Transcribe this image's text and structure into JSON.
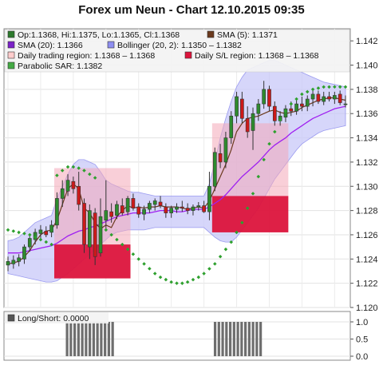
{
  "title": "Forex um Neun - Chart 12.10.2015 09:35",
  "legend": [
    {
      "id": "ohlc",
      "label": "Op:1.1368, Hi:1.1375, Lo:1.1365, Cl:1.1368",
      "color": "#2d7a2d"
    },
    {
      "id": "sma5",
      "label": "SMA (5): 1.1371",
      "color": "#6b3a1e"
    },
    {
      "id": "sma20",
      "label": "SMA (20): 1.1366",
      "color": "#7b22c8"
    },
    {
      "id": "boll",
      "label": "Bollinger (20, 2): 1.1350 – 1.1382",
      "color": "#8e8ef0"
    },
    {
      "id": "range",
      "label": "Daily trading region: 1.1368 – 1.1368",
      "color": "#ffcccc"
    },
    {
      "id": "sl",
      "label": "Daily S/L region: 1.1368 – 1.1368",
      "color": "#dc143c"
    },
    {
      "id": "sar",
      "label": "Parabolic SAR: 1.1382",
      "color": "#44aa44"
    }
  ],
  "lower_legend": {
    "label": "Long/Short: 0.0000",
    "color": "#555555"
  },
  "colors": {
    "up": "#2e8b2e",
    "down": "#cc1a1a",
    "band": "#c8c8f8",
    "sma20": "#a020f0",
    "sma5": "#6b3a1e",
    "sar": "#2ea02e",
    "bars": "#6e6e6e"
  },
  "chart_data": [
    {
      "type": "candlestick",
      "title": "Forex um Neun - Chart 12.10.2015 09:35",
      "ylim": [
        1.12,
        1.143
      ],
      "yticks": [
        "1.120",
        "1.122",
        "1.124",
        "1.126",
        "1.128",
        "1.130",
        "1.132",
        "1.134",
        "1.136",
        "1.138",
        "1.140",
        "1.142"
      ],
      "grid": true,
      "legend_position": "top-left",
      "candles": [
        {
          "o": 1.1235,
          "h": 1.1242,
          "l": 1.123,
          "c": 1.1238
        },
        {
          "o": 1.1236,
          "h": 1.1243,
          "l": 1.1232,
          "c": 1.1239
        },
        {
          "o": 1.1238,
          "h": 1.1244,
          "l": 1.1234,
          "c": 1.1241
        },
        {
          "o": 1.124,
          "h": 1.1252,
          "l": 1.1236,
          "c": 1.125
        },
        {
          "o": 1.125,
          "h": 1.126,
          "l": 1.1246,
          "c": 1.1257
        },
        {
          "o": 1.1256,
          "h": 1.1265,
          "l": 1.1252,
          "c": 1.1262
        },
        {
          "o": 1.1261,
          "h": 1.1268,
          "l": 1.1257,
          "c": 1.1264
        },
        {
          "o": 1.1263,
          "h": 1.1267,
          "l": 1.1258,
          "c": 1.126
        },
        {
          "o": 1.1262,
          "h": 1.1272,
          "l": 1.1258,
          "c": 1.1268
        },
        {
          "o": 1.1268,
          "h": 1.1295,
          "l": 1.1265,
          "c": 1.129
        },
        {
          "o": 1.129,
          "h": 1.1305,
          "l": 1.1283,
          "c": 1.1298
        },
        {
          "o": 1.1296,
          "h": 1.131,
          "l": 1.1292,
          "c": 1.1305
        },
        {
          "o": 1.1304,
          "h": 1.1308,
          "l": 1.1294,
          "c": 1.1298
        },
        {
          "o": 1.13,
          "h": 1.1312,
          "l": 1.128,
          "c": 1.1285
        },
        {
          "o": 1.1286,
          "h": 1.129,
          "l": 1.1245,
          "c": 1.1252
        },
        {
          "o": 1.125,
          "h": 1.1285,
          "l": 1.124,
          "c": 1.128
        },
        {
          "o": 1.1278,
          "h": 1.1282,
          "l": 1.1235,
          "c": 1.1242
        },
        {
          "o": 1.1245,
          "h": 1.129,
          "l": 1.1242,
          "c": 1.1275
        },
        {
          "o": 1.1272,
          "h": 1.1305,
          "l": 1.1265,
          "c": 1.128
        },
        {
          "o": 1.1279,
          "h": 1.1286,
          "l": 1.127,
          "c": 1.1275
        },
        {
          "o": 1.1276,
          "h": 1.1288,
          "l": 1.1273,
          "c": 1.1285
        },
        {
          "o": 1.1284,
          "h": 1.129,
          "l": 1.1276,
          "c": 1.1278
        },
        {
          "o": 1.1279,
          "h": 1.1292,
          "l": 1.1276,
          "c": 1.129
        },
        {
          "o": 1.129,
          "h": 1.1294,
          "l": 1.128,
          "c": 1.1282
        },
        {
          "o": 1.1283,
          "h": 1.1286,
          "l": 1.1274,
          "c": 1.1277
        },
        {
          "o": 1.1277,
          "h": 1.1284,
          "l": 1.1272,
          "c": 1.1281
        },
        {
          "o": 1.1281,
          "h": 1.1288,
          "l": 1.1278,
          "c": 1.1286
        },
        {
          "o": 1.1285,
          "h": 1.129,
          "l": 1.128,
          "c": 1.1288
        },
        {
          "o": 1.1287,
          "h": 1.1292,
          "l": 1.1282,
          "c": 1.1284
        },
        {
          "o": 1.1283,
          "h": 1.1286,
          "l": 1.1274,
          "c": 1.1278
        },
        {
          "o": 1.1278,
          "h": 1.1284,
          "l": 1.1274,
          "c": 1.1282
        },
        {
          "o": 1.1281,
          "h": 1.1286,
          "l": 1.1278,
          "c": 1.1283
        },
        {
          "o": 1.1283,
          "h": 1.1288,
          "l": 1.1279,
          "c": 1.1282
        },
        {
          "o": 1.1282,
          "h": 1.1286,
          "l": 1.1277,
          "c": 1.128
        },
        {
          "o": 1.128,
          "h": 1.1285,
          "l": 1.1276,
          "c": 1.1283
        },
        {
          "o": 1.1283,
          "h": 1.1287,
          "l": 1.128,
          "c": 1.1284
        },
        {
          "o": 1.1284,
          "h": 1.1288,
          "l": 1.1278,
          "c": 1.1279
        },
        {
          "o": 1.1279,
          "h": 1.1312,
          "l": 1.1272,
          "c": 1.13
        },
        {
          "o": 1.13,
          "h": 1.1332,
          "l": 1.1296,
          "c": 1.1328
        },
        {
          "o": 1.1327,
          "h": 1.1335,
          "l": 1.1315,
          "c": 1.132
        },
        {
          "o": 1.132,
          "h": 1.1345,
          "l": 1.1315,
          "c": 1.134
        },
        {
          "o": 1.134,
          "h": 1.1362,
          "l": 1.1335,
          "c": 1.1358
        },
        {
          "o": 1.1358,
          "h": 1.1378,
          "l": 1.1352,
          "c": 1.1374
        },
        {
          "o": 1.1372,
          "h": 1.1378,
          "l": 1.1352,
          "c": 1.1356
        },
        {
          "o": 1.1356,
          "h": 1.1366,
          "l": 1.134,
          "c": 1.1345
        },
        {
          "o": 1.1346,
          "h": 1.1365,
          "l": 1.133,
          "c": 1.136
        },
        {
          "o": 1.136,
          "h": 1.1372,
          "l": 1.1354,
          "c": 1.1368
        },
        {
          "o": 1.1368,
          "h": 1.1387,
          "l": 1.1364,
          "c": 1.138
        },
        {
          "o": 1.138,
          "h": 1.1383,
          "l": 1.1362,
          "c": 1.1366
        },
        {
          "o": 1.1366,
          "h": 1.137,
          "l": 1.135,
          "c": 1.1354
        },
        {
          "o": 1.1354,
          "h": 1.1362,
          "l": 1.135,
          "c": 1.1358
        },
        {
          "o": 1.1357,
          "h": 1.1367,
          "l": 1.1353,
          "c": 1.1364
        },
        {
          "o": 1.1364,
          "h": 1.137,
          "l": 1.1358,
          "c": 1.1362
        },
        {
          "o": 1.1362,
          "h": 1.1372,
          "l": 1.1359,
          "c": 1.1368
        },
        {
          "o": 1.1368,
          "h": 1.1374,
          "l": 1.1362,
          "c": 1.1366
        },
        {
          "o": 1.1366,
          "h": 1.1375,
          "l": 1.1362,
          "c": 1.1372
        },
        {
          "o": 1.1372,
          "h": 1.138,
          "l": 1.1366,
          "c": 1.1376
        },
        {
          "o": 1.1376,
          "h": 1.1379,
          "l": 1.1368,
          "c": 1.137
        },
        {
          "o": 1.137,
          "h": 1.1378,
          "l": 1.1367,
          "c": 1.1374
        },
        {
          "o": 1.1374,
          "h": 1.1378,
          "l": 1.137,
          "c": 1.1372
        },
        {
          "o": 1.1372,
          "h": 1.1378,
          "l": 1.1368,
          "c": 1.1375
        },
        {
          "o": 1.1376,
          "h": 1.1379,
          "l": 1.1367,
          "c": 1.1369
        },
        {
          "o": 1.1368,
          "h": 1.1375,
          "l": 1.1365,
          "c": 1.1368
        }
      ],
      "trading_regions": [
        {
          "from": 9,
          "to": 22,
          "low": 1.1252,
          "high": 1.1315
        },
        {
          "from": 38,
          "to": 51,
          "low": 1.1292,
          "high": 1.1352
        }
      ],
      "sl_regions": [
        {
          "from": 9,
          "to": 22,
          "low": 1.1224,
          "high": 1.1252
        },
        {
          "from": 38,
          "to": 51,
          "low": 1.1262,
          "high": 1.1292
        }
      ],
      "series": [
        {
          "name": "SMA (5)",
          "values": [
            1.1236,
            1.1237,
            1.1238,
            1.1242,
            1.1247,
            1.1254,
            1.126,
            1.1263,
            1.1264,
            1.1272,
            1.1285,
            1.1298,
            1.1302,
            1.1298,
            1.1282,
            1.1278,
            1.127,
            1.1265,
            1.1268,
            1.1266,
            1.1275,
            1.128,
            1.1284,
            1.1282,
            1.1283,
            1.1282,
            1.1283,
            1.1283,
            1.1284,
            1.1283,
            1.1283,
            1.1283,
            1.1282,
            1.1281,
            1.1282,
            1.1283,
            1.1282,
            1.1288,
            1.1298,
            1.1308,
            1.1318,
            1.133,
            1.1345,
            1.1352,
            1.1356,
            1.1357,
            1.1358,
            1.136,
            1.1362,
            1.1363,
            1.1361,
            1.136,
            1.1361,
            1.1362,
            1.1365,
            1.1367,
            1.1369,
            1.1371,
            1.1372,
            1.1373,
            1.1373,
            1.1372,
            1.1371
          ]
        },
        {
          "name": "SMA (20)",
          "values": [
            1.1245,
            1.1245,
            1.1245,
            1.1246,
            1.1247,
            1.1248,
            1.1249,
            1.125,
            1.1251,
            1.1253,
            1.1256,
            1.1259,
            1.1261,
            1.1263,
            1.1264,
            1.1266,
            1.1267,
            1.1269,
            1.1271,
            1.1273,
            1.1275,
            1.1276,
            1.1277,
            1.1278,
            1.1278,
            1.1278,
            1.1278,
            1.1279,
            1.128,
            1.128,
            1.128,
            1.1279,
            1.1279,
            1.128,
            1.1281,
            1.1281,
            1.1281,
            1.1283,
            1.1286,
            1.1289,
            1.1293,
            1.1298,
            1.1303,
            1.1308,
            1.1312,
            1.1316,
            1.132,
            1.1325,
            1.133,
            1.1334,
            1.1337,
            1.134,
            1.1344,
            1.1347,
            1.135,
            1.1353,
            1.1356,
            1.1358,
            1.136,
            1.1362,
            1.1364,
            1.1365,
            1.1366
          ]
        },
        {
          "name": "Bollinger upper",
          "values": [
            1.1255,
            1.1256,
            1.1258,
            1.1262,
            1.1266,
            1.127,
            1.1272,
            1.1274,
            1.1276,
            1.129,
            1.13,
            1.131,
            1.1318,
            1.1322,
            1.1322,
            1.132,
            1.1318,
            1.1312,
            1.1305,
            1.1302,
            1.13,
            1.1298,
            1.1296,
            1.1295,
            1.1295,
            1.1294,
            1.1293,
            1.1292,
            1.1292,
            1.1292,
            1.1292,
            1.1292,
            1.1292,
            1.1292,
            1.1292,
            1.1292,
            1.1292,
            1.1302,
            1.132,
            1.134,
            1.1356,
            1.137,
            1.1382,
            1.139,
            1.1396,
            1.1398,
            1.14,
            1.1402,
            1.1404,
            1.1404,
            1.1402,
            1.14,
            1.1398,
            1.1396,
            1.1394,
            1.1392,
            1.139,
            1.1388,
            1.1386,
            1.1385,
            1.1384,
            1.1383,
            1.1382
          ]
        },
        {
          "name": "Bollinger lower",
          "values": [
            1.1228,
            1.1227,
            1.1226,
            1.1225,
            1.1224,
            1.1223,
            1.1222,
            1.1221,
            1.1221,
            1.1222,
            1.1225,
            1.1228,
            1.1232,
            1.1236,
            1.124,
            1.1244,
            1.1248,
            1.1252,
            1.1256,
            1.126,
            1.1262,
            1.1263,
            1.1264,
            1.1264,
            1.1264,
            1.1264,
            1.1265,
            1.1266,
            1.1266,
            1.1266,
            1.1266,
            1.1266,
            1.1266,
            1.1266,
            1.1266,
            1.1266,
            1.1266,
            1.1262,
            1.1258,
            1.1255,
            1.1254,
            1.1254,
            1.1258,
            1.1264,
            1.127,
            1.1276,
            1.1282,
            1.129,
            1.1298,
            1.1306,
            1.1312,
            1.1318,
            1.1324,
            1.133,
            1.1335,
            1.1338,
            1.1341,
            1.1344,
            1.1346,
            1.1347,
            1.1348,
            1.1349,
            1.135
          ]
        },
        {
          "name": "Parabolic SAR",
          "values": [
            1.1264,
            1.1263,
            1.1262,
            1.1261,
            1.126,
            1.1258,
            1.1256,
            1.1254,
            1.1252,
            1.1309,
            1.1313,
            1.1316,
            1.1316,
            1.1315,
            1.1313,
            1.131,
            1.1307,
            1.1268,
            1.1264,
            1.126,
            1.1256,
            1.1252,
            1.1248,
            1.1244,
            1.124,
            1.1236,
            1.1232,
            1.1228,
            1.1225,
            1.1223,
            1.1221,
            1.122,
            1.122,
            1.1221,
            1.1223,
            1.1225,
            1.1228,
            1.1232,
            1.1236,
            1.1242,
            1.1248,
            1.1254,
            1.1262,
            1.127,
            1.1282,
            1.1294,
            1.1308,
            1.1322,
            1.1335,
            1.1345,
            1.1355,
            1.1362,
            1.1368,
            1.1372,
            1.1376,
            1.1378,
            1.138,
            1.1381,
            1.1382,
            1.1382,
            1.1382,
            1.1382,
            1.1382
          ]
        }
      ]
    },
    {
      "type": "bar",
      "title": "Long/Short",
      "ylim": [
        0,
        1
      ],
      "yticks": [
        "0.0",
        "0.5",
        "1.0"
      ],
      "values": [
        0,
        0,
        0,
        0,
        0,
        0,
        0,
        0,
        0,
        0,
        0,
        0,
        0,
        0,
        0,
        0,
        1,
        1,
        1,
        1,
        1,
        1,
        1,
        1,
        1,
        1,
        1,
        1,
        1,
        0,
        0,
        0,
        0,
        0,
        0,
        0,
        0,
        0,
        0,
        0,
        0,
        0,
        0,
        0,
        0,
        0,
        0,
        0,
        0,
        0,
        0,
        0,
        0,
        0,
        0,
        1,
        1,
        1,
        1,
        1,
        1,
        1,
        1,
        1,
        1,
        1,
        1,
        1,
        0,
        0,
        0,
        0,
        0,
        0,
        0,
        0,
        0,
        0,
        0,
        0,
        0,
        0,
        0,
        0,
        0,
        0,
        0,
        0,
        0,
        0,
        0
      ]
    }
  ]
}
